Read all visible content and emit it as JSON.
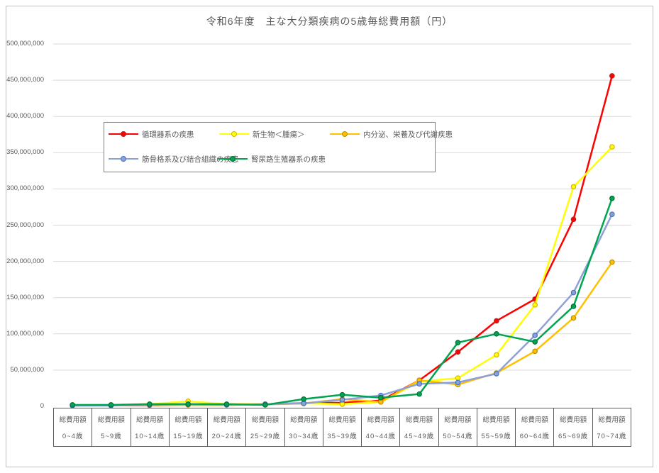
{
  "title": "令和6年度　主な大分類疾病の5歳毎総費用額（円）",
  "x_axis": {
    "group_label": "総費用額",
    "age_labels": [
      "0~4歳",
      "5~9歳",
      "10~14歳",
      "15~19歳",
      "20~24歳",
      "25~29歳",
      "30~34歳",
      "35~39歳",
      "40~44歳",
      "45~49歳",
      "50~54歳",
      "55~59歳",
      "60~64歳",
      "65~69歳",
      "70~74歳"
    ]
  },
  "y_axis": {
    "tick_labels": [
      "0",
      "50,000,000",
      "100,000,000",
      "150,000,000",
      "200,000,000",
      "250,000,000",
      "300,000,000",
      "350,000,000",
      "400,000,000",
      "450,000,000",
      "500,000,000"
    ]
  },
  "chart_data": {
    "type": "line",
    "title": "令和6年度　主な大分類疾病の5歳毎総費用額（円）",
    "xlabel": "",
    "ylabel": "",
    "ylim": [
      0,
      500000000
    ],
    "ytick_step": 50000000,
    "grid": true,
    "legend_position": "inside-top-left",
    "categories": [
      "0~4歳",
      "5~9歳",
      "10~14歳",
      "15~19歳",
      "20~24歳",
      "25~29歳",
      "30~34歳",
      "35~39歳",
      "40~44歳",
      "45~49歳",
      "50~54歳",
      "55~59歳",
      "60~64歳",
      "65~69歳",
      "70~74歳"
    ],
    "series": [
      {
        "name": "循環器系の疾患",
        "color": "#ff0000",
        "marker_edge": "#b22222",
        "values": [
          1500000,
          1200000,
          1500000,
          2000000,
          2000000,
          3000000,
          4500000,
          5000000,
          8000000,
          36000000,
          75000000,
          118000000,
          148000000,
          258000000,
          456000000
        ]
      },
      {
        "name": "新生物＜腫瘍＞",
        "color": "#ffff00",
        "marker_edge": "#d9b200",
        "values": [
          2000000,
          2000000,
          3000000,
          7000000,
          3000000,
          3000000,
          4000000,
          3000000,
          6000000,
          34000000,
          39000000,
          71000000,
          140000000,
          303000000,
          358000000
        ]
      },
      {
        "name": "内分泌、栄養及び代謝疾患",
        "color": "#ffc000",
        "marker_edge": "#bf8f00",
        "values": [
          1000000,
          1000000,
          2000000,
          2000000,
          2000000,
          2500000,
          4000000,
          10000000,
          6000000,
          36000000,
          30000000,
          46000000,
          76000000,
          122000000,
          199000000
        ]
      },
      {
        "name": "筋骨格系及び結合組織の疾患",
        "color": "#8ea0d8",
        "marker_edge": "#4472c4",
        "values": [
          1000000,
          1200000,
          2000000,
          3000000,
          2000000,
          3000000,
          4000000,
          9000000,
          15000000,
          31000000,
          33000000,
          45000000,
          98000000,
          157000000,
          265000000
        ]
      },
      {
        "name": "腎尿路生殖器系の疾患",
        "color": "#00a550",
        "marker_edge": "#00703c",
        "values": [
          2000000,
          2000000,
          3000000,
          3000000,
          3000000,
          2000000,
          10000000,
          16000000,
          12000000,
          17000000,
          88000000,
          100000000,
          89000000,
          138000000,
          287000000
        ]
      }
    ]
  }
}
